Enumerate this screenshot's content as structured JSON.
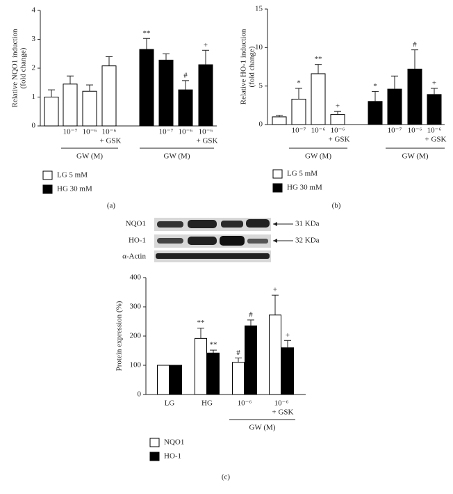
{
  "chart_data": [
    {
      "type": "bar",
      "panel_label": "(a)",
      "ylabel": [
        "Relative NQO1 induction",
        "(fold change)"
      ],
      "categories": [
        null,
        [
          "10⁻⁷"
        ],
        [
          "10⁻⁶"
        ],
        [
          "10⁻⁶",
          "+ GSK"
        ],
        null,
        [
          "10⁻⁷"
        ],
        [
          "10⁻⁶"
        ],
        [
          "10⁻⁶",
          "+ GSK"
        ]
      ],
      "group_labels": [
        "GW (M)",
        "GW (M)"
      ],
      "ylim": [
        0,
        4
      ],
      "yticks": [
        0,
        1,
        2,
        3,
        4
      ],
      "series": [
        {
          "name": "LG 5 mM",
          "color": "#ffffff",
          "values": [
            1.0,
            1.45,
            1.2,
            2.08,
            null,
            null,
            null,
            null
          ],
          "errors": [
            0.25,
            0.28,
            0.22,
            0.32,
            null,
            null,
            null,
            null
          ],
          "sig": [
            null,
            null,
            null,
            null,
            null,
            null,
            null,
            null
          ]
        },
        {
          "name": "HG 30 mM",
          "color": "#000000",
          "values": [
            null,
            null,
            null,
            null,
            2.65,
            2.28,
            1.25,
            2.12
          ],
          "errors": [
            null,
            null,
            null,
            null,
            0.38,
            0.22,
            0.32,
            0.5
          ],
          "sig": [
            null,
            null,
            null,
            null,
            "**",
            null,
            "#",
            "+"
          ]
        }
      ]
    },
    {
      "type": "bar",
      "panel_label": "(b)",
      "ylabel": [
        "Relative HO-1 induction",
        "(fold change)"
      ],
      "categories": [
        null,
        [
          "10⁻⁷"
        ],
        [
          "10⁻⁶"
        ],
        [
          "10⁻⁶",
          "+ GSK"
        ],
        null,
        [
          "10⁻⁷"
        ],
        [
          "10⁻⁶"
        ],
        [
          "10⁻⁶",
          "+ GSK"
        ]
      ],
      "group_labels": [
        "GW (M)",
        "GW (M)"
      ],
      "ylim": [
        0,
        15
      ],
      "yticks": [
        0,
        5,
        10,
        15
      ],
      "series": [
        {
          "name": "LG 5 mM",
          "color": "#ffffff",
          "values": [
            1.0,
            3.3,
            6.6,
            1.3,
            null,
            null,
            null,
            null
          ],
          "errors": [
            0.2,
            1.4,
            1.2,
            0.4,
            null,
            null,
            null,
            null
          ],
          "sig": [
            null,
            "*",
            "**",
            "+",
            null,
            null,
            null,
            null
          ]
        },
        {
          "name": "HG 30 mM",
          "color": "#000000",
          "values": [
            null,
            null,
            null,
            null,
            3.0,
            4.6,
            7.2,
            3.9
          ],
          "errors": [
            null,
            null,
            null,
            null,
            1.3,
            1.7,
            2.5,
            0.8
          ],
          "sig": [
            null,
            null,
            null,
            null,
            "*",
            null,
            "#",
            "+"
          ]
        }
      ]
    },
    {
      "type": "bar",
      "panel_label": "(c)",
      "ylabel": [
        "Protein expression (%)"
      ],
      "categories": [
        [
          "LG"
        ],
        [
          "HG"
        ],
        [
          "10⁻⁶"
        ],
        [
          "10⁻⁶",
          "+ GSK"
        ]
      ],
      "group_labels": [
        "GW (M)"
      ],
      "ylim": [
        0,
        400
      ],
      "yticks": [
        0,
        100,
        200,
        300,
        400
      ],
      "series": [
        {
          "name": "NQO1",
          "color": "#ffffff",
          "values": [
            100,
            192,
            110,
            272
          ],
          "errors": [
            0,
            35,
            15,
            68
          ],
          "sig": [
            null,
            "**",
            "#",
            "+"
          ]
        },
        {
          "name": "HO-1",
          "color": "#000000",
          "values": [
            100,
            142,
            235,
            160
          ],
          "errors": [
            0,
            10,
            20,
            25
          ],
          "sig": [
            null,
            "**",
            "#",
            "+"
          ]
        }
      ]
    }
  ],
  "blot": {
    "rows": [
      "NQO1",
      "HO-1",
      "α-Actin"
    ],
    "markers": [
      "31 KDa",
      "32 KDa"
    ]
  }
}
